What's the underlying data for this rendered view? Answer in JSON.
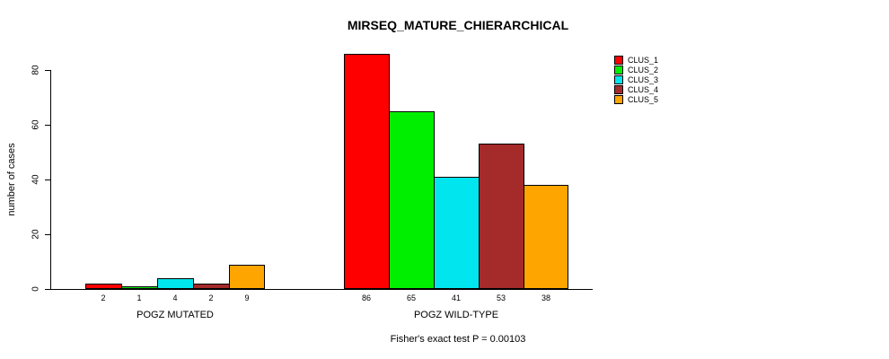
{
  "chart_data": {
    "type": "bar",
    "title": "MIRSEQ_MATURE_CHIERARCHICAL",
    "xlabel": "",
    "ylabel": "number of cases",
    "ylim": [
      0,
      90
    ],
    "yticks": [
      0,
      20,
      40,
      60,
      80
    ],
    "grid": false,
    "legend_position": "right",
    "annotation": "Fisher's exact test P = 0.00103",
    "categories": [
      "POGZ MUTATED",
      "POGZ WILD-TYPE"
    ],
    "series": [
      {
        "name": "CLUS_1",
        "color": "#FF0000",
        "values": [
          2,
          86
        ]
      },
      {
        "name": "CLUS_2",
        "color": "#00EE00",
        "values": [
          1,
          65
        ]
      },
      {
        "name": "CLUS_3",
        "color": "#00E5EE",
        "values": [
          4,
          41
        ]
      },
      {
        "name": "CLUS_4",
        "color": "#A52A2A",
        "values": [
          2,
          53
        ]
      },
      {
        "name": "CLUS_5",
        "color": "#FFA500",
        "values": [
          9,
          38
        ]
      }
    ],
    "bar_labels": [
      [
        2,
        1,
        4,
        2,
        9
      ],
      [
        86,
        65,
        41,
        53,
        38
      ]
    ]
  }
}
